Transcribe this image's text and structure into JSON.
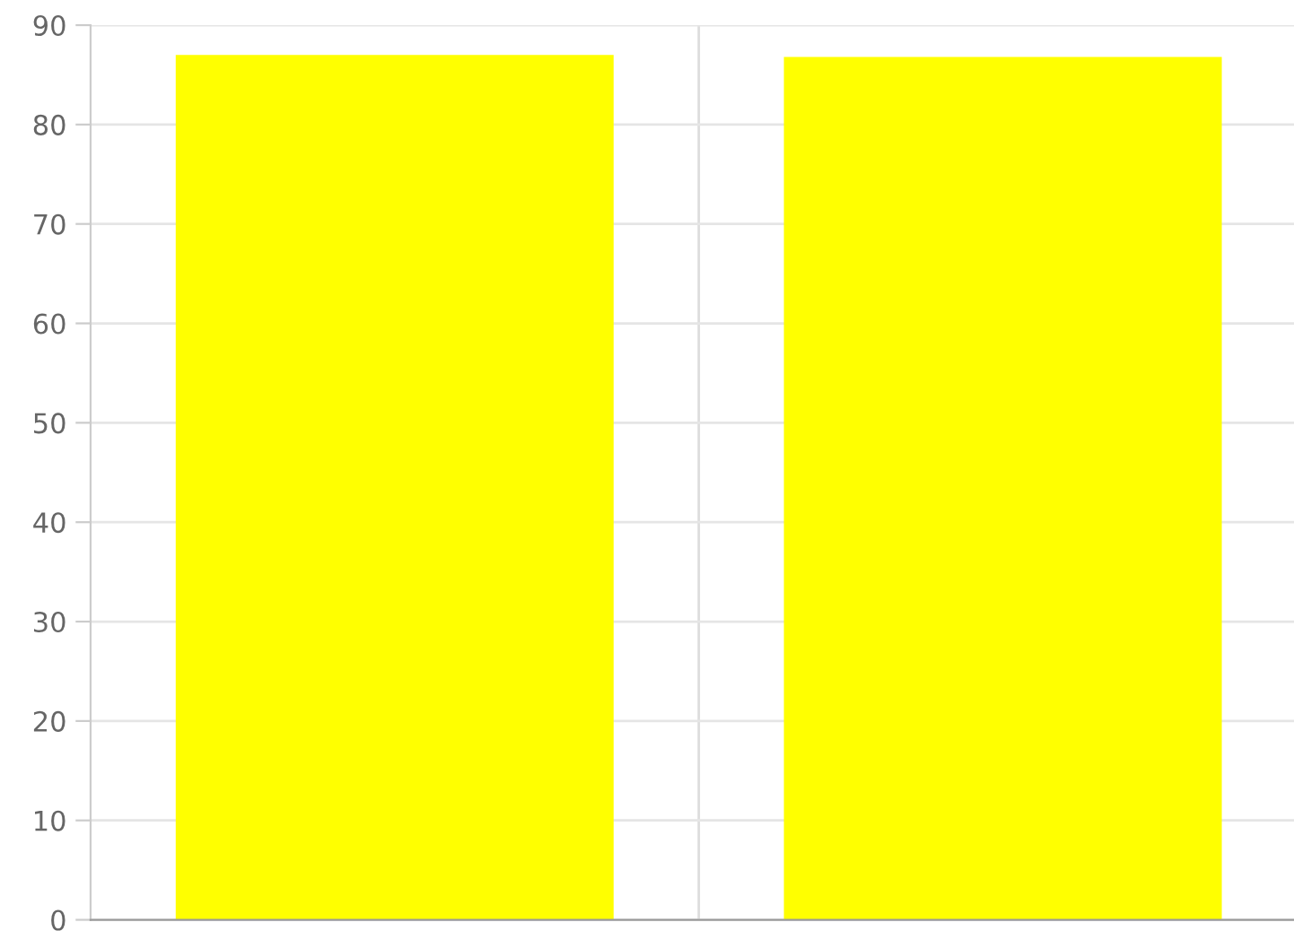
{
  "chart_data": {
    "type": "bar",
    "categories": [
      null,
      null
    ],
    "values": [
      87,
      86.8
    ],
    "color": "#ffff00",
    "ylim": [
      0,
      90
    ],
    "yticks": [
      0,
      10,
      20,
      30,
      40,
      50,
      60,
      70,
      80,
      90
    ],
    "grid": true,
    "tick_labels": "y"
  }
}
